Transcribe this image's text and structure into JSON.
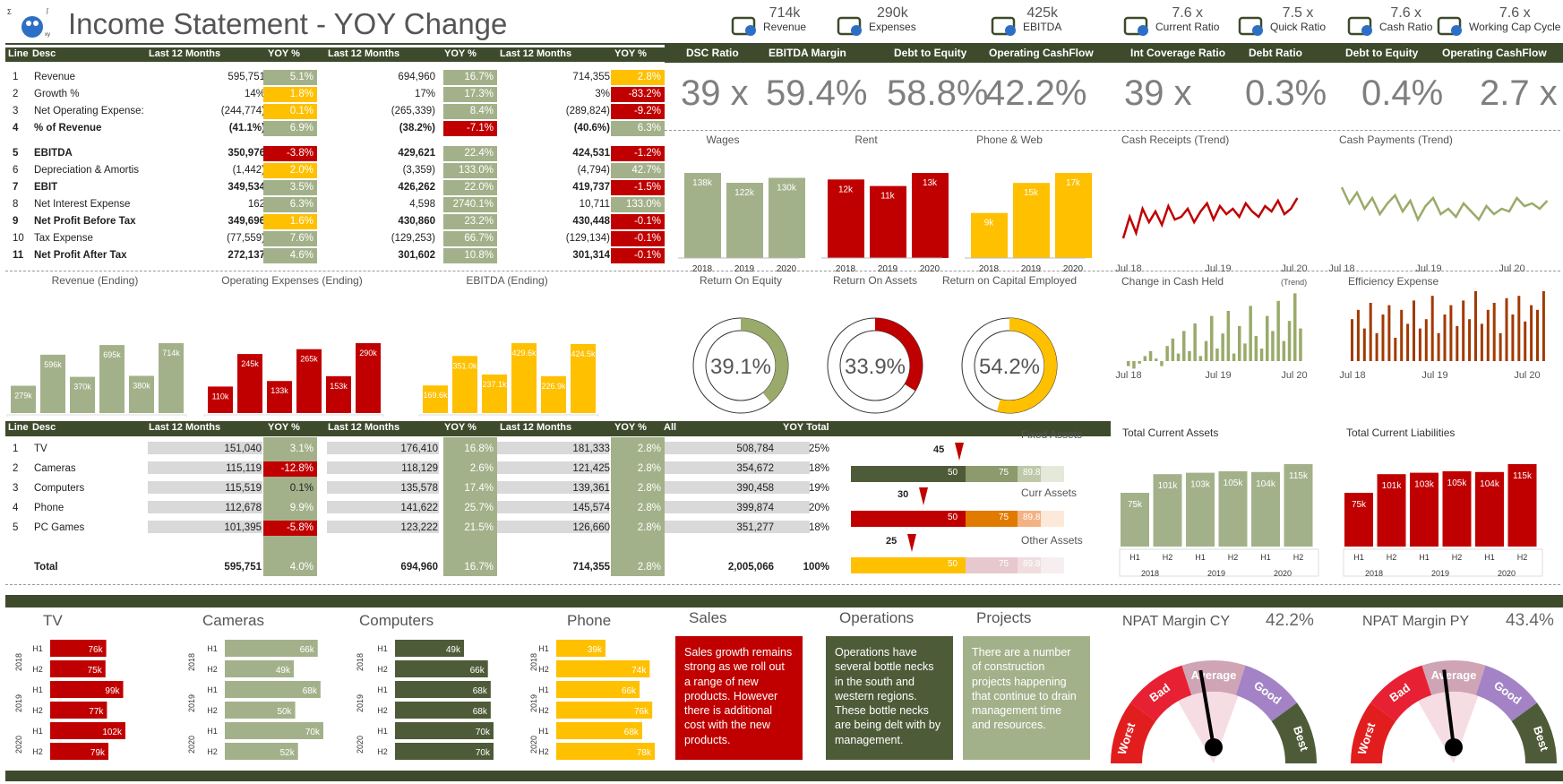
{
  "header": {
    "title": "Income Statement - YOY Change"
  },
  "kpis": [
    {
      "icon": "cart-icon",
      "value": "714k",
      "label": "Revenue"
    },
    {
      "icon": "calculator-icon",
      "value": "290k",
      "label": "Expenses"
    },
    {
      "icon": "growth-chart-icon",
      "value": "425k",
      "label": "EBITDA"
    },
    {
      "icon": "scales-icon",
      "value": "7.6 x",
      "label": "Current Ratio"
    },
    {
      "icon": "refresh-icon",
      "value": "7.5 x",
      "label": "Quick Ratio"
    },
    {
      "icon": "coins-icon",
      "value": "7.6 x",
      "label": "Cash Ratio"
    },
    {
      "icon": "gears-icon",
      "value": "7.6 x",
      "label": "Working Cap Cycle"
    }
  ],
  "income_table": {
    "headers": [
      "Line",
      "Desc",
      "Last 12 Months",
      "YOY %",
      "Last 12 Months",
      "YOY %",
      "Last 12 Months",
      "YOY %"
    ],
    "rows": [
      {
        "line": "1",
        "desc": "Revenue",
        "a": "595,751",
        "ay": "5.1%",
        "b": "694,960",
        "by": "16.7%",
        "c": "714,355",
        "cy": "2.8%",
        "bold": false
      },
      {
        "line": "2",
        "desc": "Growth %",
        "a": "14%",
        "ay": "1.8%",
        "b": "17%",
        "by": "17.3%",
        "c": "3%",
        "cy": "-83.2%",
        "bold": false
      },
      {
        "line": "3",
        "desc": "Net Operating Expense:",
        "a": "(244,774)",
        "ay": "0.1%",
        "b": "(265,339)",
        "by": "8.4%",
        "c": "(289,824)",
        "cy": "-9.2%",
        "bold": false
      },
      {
        "line": "4",
        "desc": "% of Revenue",
        "a": "(41.1%)",
        "ay": "6.9%",
        "b": "(38.2%)",
        "by": "-7.1%",
        "c": "(40.6%)",
        "cy": "6.3%",
        "bold": true
      },
      {
        "line": "5",
        "desc": "EBITDA",
        "a": "350,976",
        "ay": "-3.8%",
        "b": "429,621",
        "by": "22.4%",
        "c": "424,531",
        "cy": "-1.2%",
        "bold": true
      },
      {
        "line": "6",
        "desc": "Depreciation & Amortis",
        "a": "(1,442)",
        "ay": "2.0%",
        "b": "(3,359)",
        "by": "133.0%",
        "c": "(4,794)",
        "cy": "42.7%",
        "bold": false
      },
      {
        "line": "7",
        "desc": "EBIT",
        "a": "349,534",
        "ay": "3.5%",
        "b": "426,262",
        "by": "22.0%",
        "c": "419,737",
        "cy": "-1.5%",
        "bold": true
      },
      {
        "line": "8",
        "desc": "Net Interest Expense",
        "a": "162",
        "ay": "6.3%",
        "b": "4,598",
        "by": "2740.1%",
        "c": "10,711",
        "cy": "133.0%",
        "bold": false
      },
      {
        "line": "9",
        "desc": "Net Profit Before Tax",
        "a": "349,696",
        "ay": "1.6%",
        "b": "430,860",
        "by": "23.2%",
        "c": "430,448",
        "cy": "-0.1%",
        "bold": true
      },
      {
        "line": "10",
        "desc": "Tax Expense",
        "a": "(77,559)",
        "ay": "7.6%",
        "b": "(129,253)",
        "by": "66.7%",
        "c": "(129,134)",
        "cy": "-0.1%",
        "bold": false
      },
      {
        "line": "11",
        "desc": "Net Profit After Tax",
        "a": "272,137",
        "ay": "4.6%",
        "b": "301,602",
        "by": "10.8%",
        "c": "301,314",
        "cy": "-0.1%",
        "bold": true
      }
    ]
  },
  "ratios": [
    {
      "label": "DSC Ratio",
      "value": "39 x"
    },
    {
      "label": "EBITDA Margin",
      "value": "59.4%"
    },
    {
      "label": "Debt to Equity",
      "value": "58.8%"
    },
    {
      "label": "Operating CashFlow",
      "value": "42.2%"
    },
    {
      "label": "Int Coverage Ratio",
      "value": "39 x"
    },
    {
      "label": "Debt Ratio",
      "value": "0.3%"
    },
    {
      "label": "Debt to Equity",
      "value": "0.4%"
    },
    {
      "label": "Operating CashFlow",
      "value": "2.7 x"
    }
  ],
  "small_bars": [
    {
      "title": "Wages",
      "values": [
        "138k",
        "122k",
        "130k"
      ],
      "years": [
        "2018",
        "2019",
        "2020"
      ],
      "color": "#a3b18a"
    },
    {
      "title": "Rent",
      "values": [
        "12k",
        "11k",
        "13k"
      ],
      "years": [
        "2018",
        "2019",
        "2020"
      ],
      "color": "#c00000"
    },
    {
      "title": "Phone & Web",
      "values": [
        "9k",
        "15k",
        "17k"
      ],
      "years": [
        "2018",
        "2019",
        "2020"
      ],
      "color": "#ffc000"
    }
  ],
  "trend_titles": {
    "receipts": "Cash Receipts (Trend)",
    "payments": "Cash Payments (Trend)",
    "change": "Change in Cash Held",
    "change_suffix": "(Trend)",
    "efficiency": "Efficiency Expense"
  },
  "trend_axis": [
    "Jul 18",
    "Jul 19",
    "Jul 20"
  ],
  "half_bars": [
    {
      "title": "Revenue (Ending)",
      "values": [
        "279k",
        "596k",
        "370k",
        "695k",
        "380k",
        "714k"
      ],
      "color": "#a3b18a"
    },
    {
      "title": "Operating Expenses (Ending)",
      "values": [
        "110k",
        "245k",
        "133k",
        "265k",
        "153k",
        "290k"
      ],
      "color": "#c00000"
    },
    {
      "title": "EBITDA (Ending)",
      "values": [
        "169.6k",
        "351.0k",
        "237.1k",
        "429.6k",
        "226.9k",
        "424.5k"
      ],
      "color": "#ffc000"
    }
  ],
  "halves": [
    "H1",
    "H2"
  ],
  "years": [
    "2018",
    "2019",
    "2020"
  ],
  "donuts": [
    {
      "title": "Return On Equity",
      "value": "39.1%",
      "pct": 39.1,
      "color": "#9aaa6a"
    },
    {
      "title": "Return On Assets",
      "value": "33.9%",
      "pct": 33.9,
      "color": "#c00000"
    },
    {
      "title": "Return on Capital Employed",
      "value": "54.2%",
      "pct": 54.2,
      "color": "#ffc000"
    }
  ],
  "product_table": {
    "headers": [
      "Line",
      "Desc",
      "Last 12 Months",
      "YOY %",
      "Last 12 Months",
      "YOY %",
      "Last 12 Months",
      "YOY %",
      "All",
      "YOY Total"
    ],
    "rows": [
      {
        "line": "1",
        "desc": "TV",
        "a": "151,040",
        "ay": "3.1%",
        "b": "176,410",
        "by": "16.8%",
        "c": "181,333",
        "cy": "2.8%",
        "all": "508,784",
        "tot": "25%"
      },
      {
        "line": "2",
        "desc": "Cameras",
        "a": "115,119",
        "ay": "-12.8%",
        "b": "118,129",
        "by": "2.6%",
        "c": "121,425",
        "cy": "2.8%",
        "all": "354,672",
        "tot": "18%"
      },
      {
        "line": "3",
        "desc": "Computers",
        "a": "115,519",
        "ay": "0.1%",
        "b": "135,578",
        "by": "17.4%",
        "c": "139,361",
        "cy": "2.8%",
        "all": "390,458",
        "tot": "19%"
      },
      {
        "line": "4",
        "desc": "Phone",
        "a": "112,678",
        "ay": "9.9%",
        "b": "141,622",
        "by": "25.7%",
        "c": "145,574",
        "cy": "2.8%",
        "all": "399,874",
        "tot": "20%"
      },
      {
        "line": "5",
        "desc": "PC Games",
        "a": "101,395",
        "ay": "-5.8%",
        "b": "123,222",
        "by": "21.5%",
        "c": "126,660",
        "cy": "2.8%",
        "all": "351,277",
        "tot": "18%"
      }
    ],
    "total": {
      "desc": "Total",
      "a": "595,751",
      "ay": "4.0%",
      "b": "694,960",
      "by": "16.7%",
      "c": "714,355",
      "cy": "2.8%",
      "all": "2,005,066",
      "tot": "100%"
    }
  },
  "bullets": [
    {
      "title": "Fixed Assets",
      "marker": "45",
      "v1": "50",
      "v2": "75",
      "v3": "89.8",
      "c1": "#4e5b38",
      "c2": "#8c9a6c",
      "c3": "#bfc8a8",
      "c4": "#e4e9da"
    },
    {
      "title": "Curr Assets",
      "marker": "30",
      "v1": "50",
      "v2": "75",
      "v3": "89.8",
      "c1": "#c00000",
      "c2": "#e07b00",
      "c3": "#f4b183",
      "c4": "#fde9d9"
    },
    {
      "title": "Other Assets",
      "marker": "25",
      "v1": "50",
      "v2": "75",
      "v3": "89.8",
      "c1": "#ffc000",
      "c2": "#e8c8cf",
      "c3": "#efdde0",
      "c4": "#f7eef0"
    }
  ],
  "current_assets": {
    "title": "Total Current Assets",
    "values": [
      "75k",
      "101k",
      "103k",
      "105k",
      "104k",
      "115k"
    ],
    "color": "#a3b18a"
  },
  "current_liab": {
    "title": "Total Current Liabilities",
    "values": [
      "75k",
      "101k",
      "103k",
      "105k",
      "104k",
      "115k"
    ],
    "color": "#c00000"
  },
  "products": [
    {
      "title": "TV",
      "values": [
        "76k",
        "75k",
        "99k",
        "77k",
        "102k",
        "79k"
      ],
      "color": "#c00000"
    },
    {
      "title": "Cameras",
      "values": [
        "66k",
        "49k",
        "68k",
        "50k",
        "70k",
        "52k"
      ],
      "color": "#a3b18a"
    },
    {
      "title": "Computers",
      "values": [
        "49k",
        "66k",
        "68k",
        "68k",
        "70k",
        "70k"
      ],
      "color": "#4e5b38"
    },
    {
      "title": "Phone",
      "values": [
        "39k",
        "74k",
        "66k",
        "76k",
        "68k",
        "78k"
      ],
      "color": "#ffc000"
    }
  ],
  "notes": [
    {
      "title": "Sales",
      "text": "Sales growth remains strong as we roll out a range of new products. However there is additional cost with the new products.",
      "color": "#c00000"
    },
    {
      "title": "Operations",
      "text": "Operations have several bottle necks in the south and western regions. These bottle necks are being delt with by management.",
      "color": "#4e5b38"
    },
    {
      "title": "Projects",
      "text": "There are a number of construction projects happening that continue to drain management time and resources.",
      "color": "#a3b18a"
    }
  ],
  "gauges": [
    {
      "title": "NPAT Margin CY",
      "value": "42.2%",
      "needle": 42.2
    },
    {
      "title": "NPAT Margin PY",
      "value": "43.4%",
      "needle": 43.4
    }
  ],
  "gauge_labels": [
    "Worst",
    "Bad",
    "Average",
    "Good",
    "Best"
  ]
}
